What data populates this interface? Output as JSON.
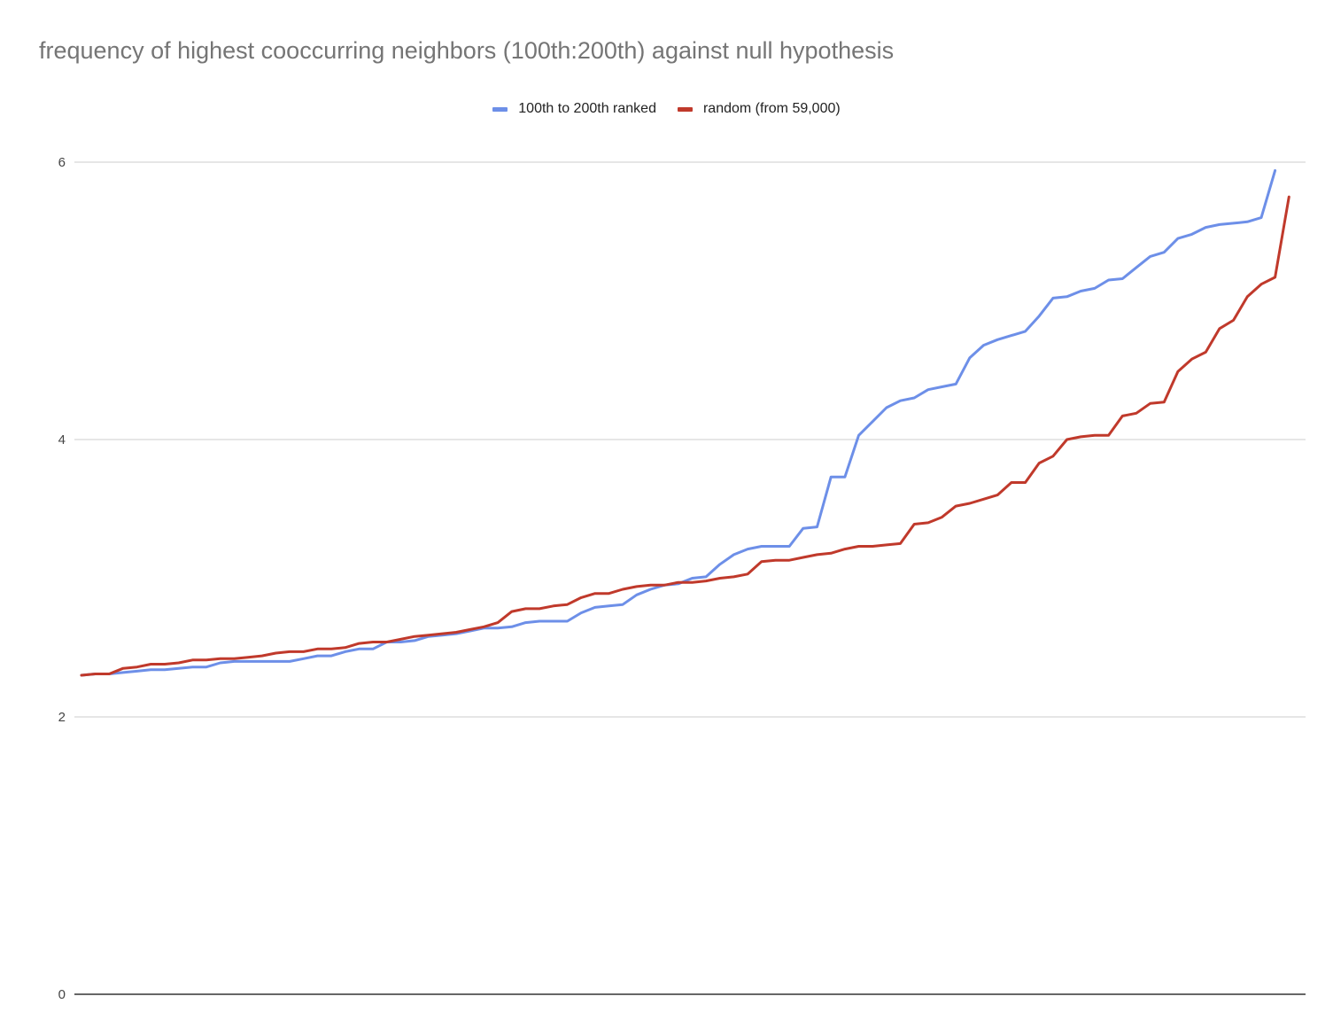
{
  "chart_data": {
    "type": "line",
    "title": "frequency of highest cooccurring neighbors (100th:200th) against null hypothesis",
    "xlabel": "",
    "ylabel": "",
    "ylim": [
      0,
      6
    ],
    "yticks": [
      "0",
      "2",
      "4",
      "6"
    ],
    "grid": true,
    "legend_position": "top",
    "series": [
      {
        "name": "100th to 200th ranked",
        "color": "#6d8fe8",
        "values": [
          2.3,
          2.31,
          2.31,
          2.32,
          2.33,
          2.34,
          2.34,
          2.35,
          2.36,
          2.36,
          2.39,
          2.4,
          2.4,
          2.4,
          2.4,
          2.4,
          2.42,
          2.44,
          2.44,
          2.47,
          2.49,
          2.49,
          2.54,
          2.54,
          2.55,
          2.58,
          2.59,
          2.6,
          2.62,
          2.64,
          2.64,
          2.65,
          2.68,
          2.69,
          2.69,
          2.69,
          2.75,
          2.79,
          2.8,
          2.81,
          2.88,
          2.92,
          2.95,
          2.96,
          3.0,
          3.01,
          3.1,
          3.17,
          3.21,
          3.23,
          3.23,
          3.23,
          3.36,
          3.37,
          3.73,
          3.73,
          4.03,
          4.13,
          4.23,
          4.28,
          4.3,
          4.36,
          4.38,
          4.4,
          4.59,
          4.68,
          4.72,
          4.75,
          4.78,
          4.89,
          5.02,
          5.03,
          5.07,
          5.09,
          5.15,
          5.16,
          5.24,
          5.32,
          5.35,
          5.45,
          5.48,
          5.53,
          5.55,
          5.56,
          5.57,
          5.6,
          5.94
        ]
      },
      {
        "name": "random (from 59,000)",
        "color": "#c0392b",
        "values": [
          2.3,
          2.31,
          2.31,
          2.35,
          2.36,
          2.38,
          2.38,
          2.39,
          2.41,
          2.41,
          2.42,
          2.42,
          2.43,
          2.44,
          2.46,
          2.47,
          2.47,
          2.49,
          2.49,
          2.5,
          2.53,
          2.54,
          2.54,
          2.56,
          2.58,
          2.59,
          2.6,
          2.61,
          2.63,
          2.65,
          2.68,
          2.76,
          2.78,
          2.78,
          2.8,
          2.81,
          2.86,
          2.89,
          2.89,
          2.92,
          2.94,
          2.95,
          2.95,
          2.97,
          2.97,
          2.98,
          3.0,
          3.01,
          3.03,
          3.12,
          3.13,
          3.13,
          3.15,
          3.17,
          3.18,
          3.21,
          3.23,
          3.23,
          3.24,
          3.25,
          3.39,
          3.4,
          3.44,
          3.52,
          3.54,
          3.57,
          3.6,
          3.69,
          3.69,
          3.83,
          3.88,
          4.0,
          4.02,
          4.03,
          4.03,
          4.17,
          4.19,
          4.26,
          4.27,
          4.49,
          4.58,
          4.63,
          4.8,
          4.86,
          5.03,
          5.12,
          5.17,
          5.75
        ]
      }
    ]
  }
}
